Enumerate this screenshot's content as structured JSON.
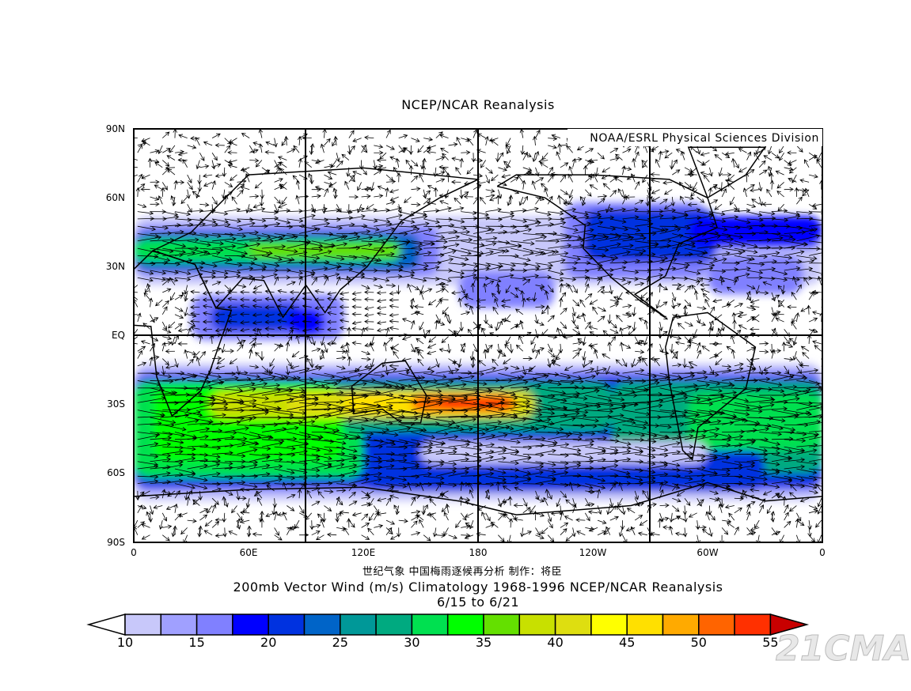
{
  "title": "NCEP/NCAR Reanalysis",
  "credit": "NOAA/ESRL Physical Sciences Division",
  "subtitle_cn": "世纪气象  中国梅雨逐候再分析  制作：将臣",
  "caption": "200mb Vector Wind (m/s) Climatology 1968-1996 NCEP/NCAR Reanalysis",
  "date_range": "6/15  to 6/21",
  "watermark": "21CMA",
  "map": {
    "lat_labels": [
      "90N",
      "60N",
      "30N",
      "EQ",
      "30S",
      "60S",
      "90S"
    ],
    "lon_labels": [
      "0",
      "60E",
      "120E",
      "180",
      "120W",
      "60W",
      "0"
    ]
  },
  "colorbar": {
    "labels": [
      "10",
      "15",
      "20",
      "25",
      "30",
      "35",
      "40",
      "45",
      "50",
      "55"
    ],
    "below_color": "#ffffff",
    "above_color": "#c80000",
    "colors": [
      "#c8c8fa",
      "#a0a0ff",
      "#8080ff",
      "#0000ff",
      "#0032e0",
      "#0064c8",
      "#009898",
      "#00aa80",
      "#00e050",
      "#00ff00",
      "#64e000",
      "#c8e000",
      "#dede10",
      "#ffff00",
      "#ffe000",
      "#ffaa00",
      "#ff6400",
      "#ff3000"
    ]
  }
}
